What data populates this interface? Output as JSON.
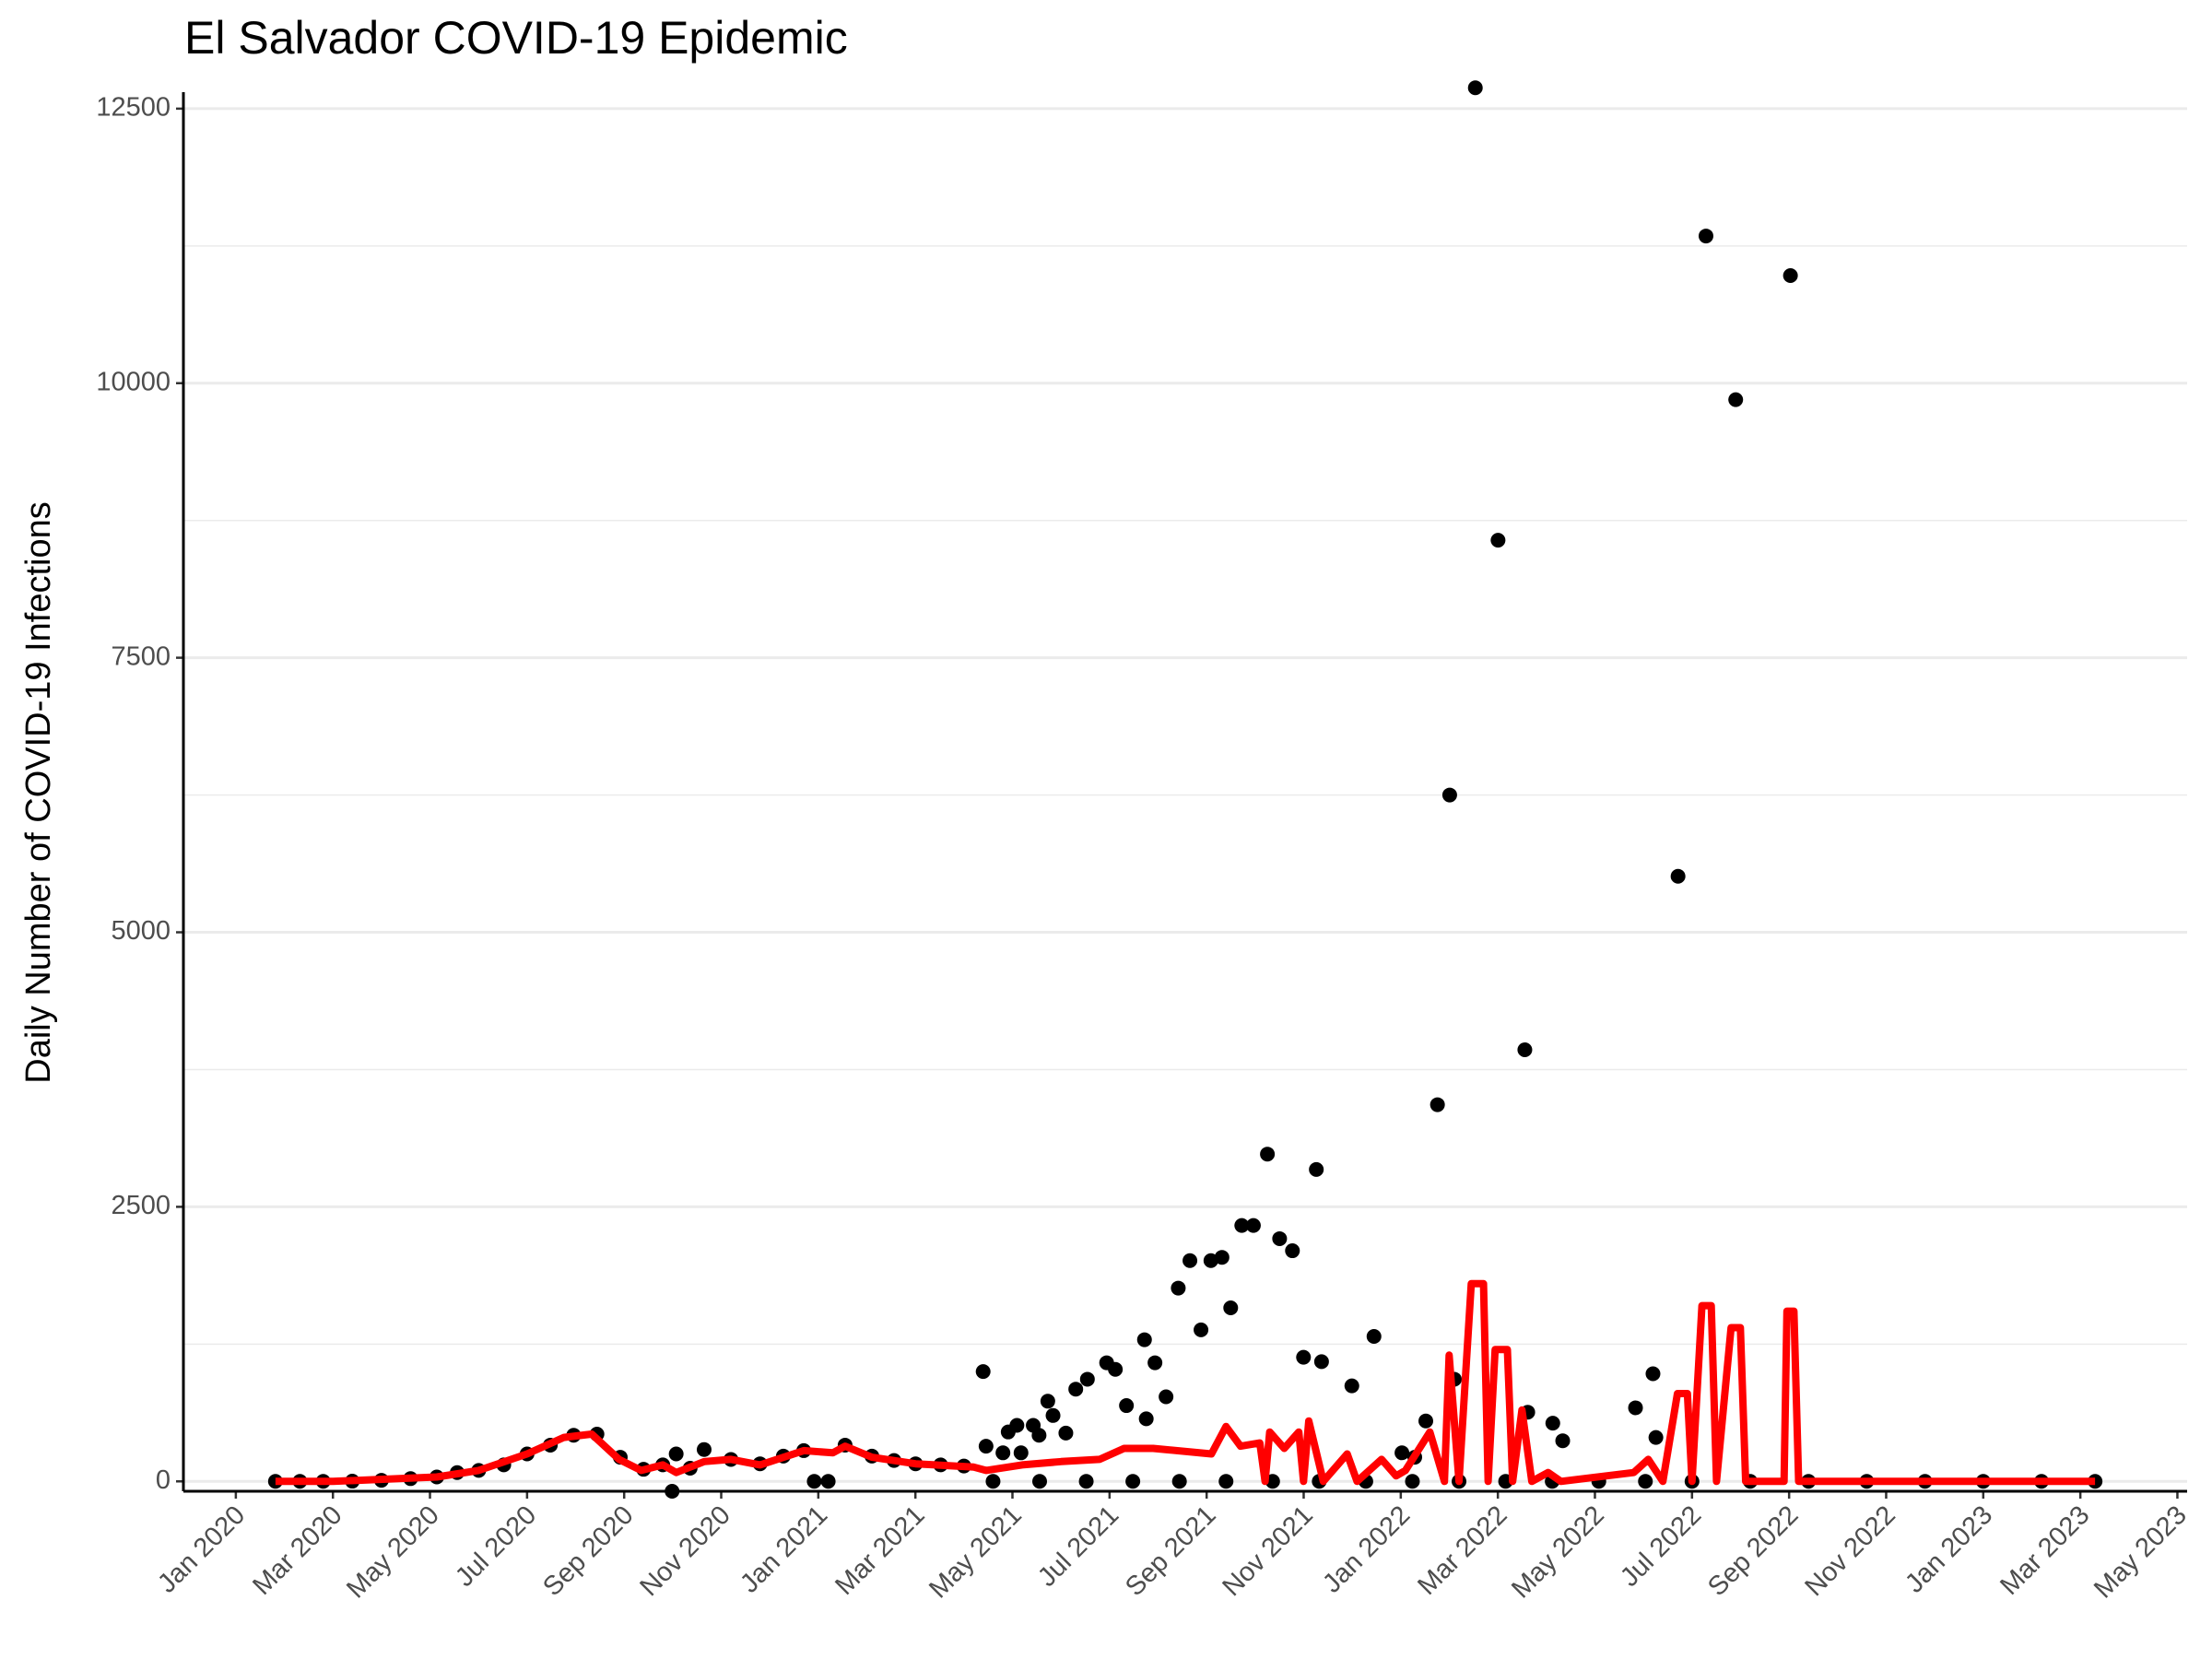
{
  "chart_data": {
    "type": "scatter",
    "title": "El Salvador COVID-19 Epidemic",
    "y_label": "Daily Number of COVID-19 Infections",
    "xlim": [
      2019.91,
      2023.35
    ],
    "ylim": [
      -90,
      12650
    ],
    "yticks": [
      0,
      2500,
      5000,
      7500,
      10000,
      12500
    ],
    "yticks_minor": [
      1250,
      3750,
      6250,
      8750,
      11250
    ],
    "xticks": [
      {
        "value": 2020.0,
        "label": "Jan 2020"
      },
      {
        "value": 2020.1667,
        "label": "Mar 2020"
      },
      {
        "value": 2020.3333,
        "label": "May 2020"
      },
      {
        "value": 2020.5,
        "label": "Jul 2020"
      },
      {
        "value": 2020.6667,
        "label": "Sep 2020"
      },
      {
        "value": 2020.8333,
        "label": "Nov 2020"
      },
      {
        "value": 2021.0,
        "label": "Jan 2021"
      },
      {
        "value": 2021.1667,
        "label": "Mar 2021"
      },
      {
        "value": 2021.3333,
        "label": "May 2021"
      },
      {
        "value": 2021.5,
        "label": "Jul 2021"
      },
      {
        "value": 2021.6667,
        "label": "Sep 2021"
      },
      {
        "value": 2021.8333,
        "label": "Nov 2021"
      },
      {
        "value": 2022.0,
        "label": "Jan 2022"
      },
      {
        "value": 2022.1667,
        "label": "Mar 2022"
      },
      {
        "value": 2022.3333,
        "label": "May 2022"
      },
      {
        "value": 2022.5,
        "label": "Jul 2022"
      },
      {
        "value": 2022.6667,
        "label": "Sep 2022"
      },
      {
        "value": 2022.8333,
        "label": "Nov 2022"
      },
      {
        "value": 2023.0,
        "label": "Jan 2023"
      },
      {
        "value": 2023.1667,
        "label": "Mar 2023"
      },
      {
        "value": 2023.3333,
        "label": "May 2023"
      }
    ],
    "grid": "y",
    "series": [
      {
        "mark": "point",
        "color": "#000000",
        "x": [
          2022.128,
          2022.524,
          2022.669,
          2022.575,
          2022.167,
          2022.084,
          2022.476,
          2022.213,
          2022.063,
          2021.771,
          2021.855,
          2021.727,
          2021.747,
          2021.792,
          2021.814,
          2021.693,
          2021.674,
          2021.638,
          2021.618,
          2021.708,
          2021.954,
          2021.657,
          2021.56,
          2021.833,
          2021.864,
          2021.495,
          2021.578,
          2021.51,
          2021.283,
          2022.433,
          2021.462,
          2022.092,
          2021.916,
          2021.442,
          2021.597,
          2021.394,
          2021.529,
          2022.403,
          2022.218,
          2021.403,
          2021.563,
          2022.043,
          2022.261,
          2021.341,
          2021.369,
          2021.326,
          2021.425,
          2021.379,
          2022.278,
          2022.438,
          2021.288,
          2021.317,
          2021.348,
          2022.002,
          2022.024,
          2020.993,
          2021.017,
          2020.749,
          2020.068,
          2020.11,
          2020.15,
          2020.2,
          2020.25,
          2020.3,
          2020.345,
          2020.38,
          2020.417,
          2020.46,
          2020.5,
          2020.54,
          2020.58,
          2020.62,
          2020.66,
          2020.7,
          2020.733,
          2020.756,
          2020.78,
          2020.804,
          2020.85,
          2020.9,
          2020.94,
          2020.975,
          2021.046,
          2021.092,
          2021.13,
          2021.167,
          2021.21,
          2021.25,
          2021.3,
          2021.38,
          2021.46,
          2021.54,
          2021.62,
          2021.7,
          2021.78,
          2021.86,
          2021.94,
          2022.02,
          2022.1,
          2022.18,
          2022.26,
          2022.34,
          2022.42,
          2022.5,
          2022.6,
          2022.7,
          2022.8,
          2022.9,
          2023.0,
          2023.1,
          2023.192
        ],
        "values": [
          12690,
          11340,
          10980,
          9850,
          8570,
          6250,
          5510,
          3930,
          3430,
          2980,
          2840,
          2330,
          2330,
          2210,
          2100,
          2040,
          2010,
          2010,
          1760,
          1580,
          1320,
          1380,
          1290,
          1130,
          1090,
          1080,
          1080,
          1020,
          1000,
          980,
          930,
          930,
          870,
          840,
          770,
          730,
          690,
          670,
          630,
          600,
          570,
          550,
          530,
          510,
          510,
          450,
          440,
          420,
          370,
          400,
          320,
          260,
          260,
          260,
          220,
          0,
          0,
          -90,
          0,
          0,
          0,
          2,
          10,
          25,
          40,
          80,
          100,
          150,
          250,
          330,
          420,
          430,
          220,
          110,
          150,
          250,
          120,
          290,
          200,
          160,
          230,
          280,
          330,
          230,
          190,
          160,
          150,
          140,
          0,
          0,
          0,
          0,
          0,
          0,
          0,
          0,
          0,
          0,
          0,
          0,
          0,
          0,
          0,
          0,
          0,
          0,
          0,
          0,
          0,
          0,
          0
        ]
      },
      {
        "mark": "line",
        "color": "#ff0000",
        "x": [
          2020.068,
          2020.167,
          2020.345,
          2020.417,
          2020.5,
          2020.563,
          2020.611,
          2020.658,
          2020.696,
          2020.733,
          2020.756,
          2020.804,
          2020.85,
          2020.9,
          2020.975,
          2021.025,
          2021.046,
          2021.092,
          2021.167,
          2021.267,
          2021.288,
          2021.35,
          2021.417,
          2021.483,
          2021.525,
          2021.575,
          2021.675,
          2021.7,
          2021.725,
          2021.758,
          2021.767,
          2021.775,
          2021.8,
          2021.825,
          2021.833,
          2021.842,
          2021.867,
          2021.908,
          2021.925,
          2021.967,
          2021.992,
          2022.008,
          2022.05,
          2022.075,
          2022.083,
          2022.1,
          2022.121,
          2022.142,
          2022.15,
          2022.162,
          2022.183,
          2022.192,
          2022.208,
          2022.225,
          2022.253,
          2022.275,
          2022.4,
          2022.425,
          2022.45,
          2022.475,
          2022.492,
          2022.5,
          2022.517,
          2022.533,
          2022.542,
          2022.567,
          2022.583,
          2022.592,
          2022.658,
          2022.663,
          2022.675,
          2022.683,
          2023.192
        ],
        "values": [
          0,
          0,
          40,
          100,
          250,
          400,
          430,
          200,
          100,
          150,
          80,
          180,
          200,
          150,
          280,
          260,
          320,
          220,
          160,
          130,
          100,
          150,
          180,
          200,
          300,
          300,
          250,
          500,
          320,
          350,
          0,
          450,
          300,
          450,
          0,
          550,
          0,
          250,
          0,
          200,
          50,
          100,
          450,
          0,
          1150,
          0,
          1800,
          1800,
          0,
          1200,
          1200,
          0,
          650,
          0,
          80,
          0,
          80,
          200,
          0,
          800,
          800,
          0,
          1600,
          1600,
          0,
          1400,
          1400,
          0,
          0,
          1550,
          1550,
          0,
          0
        ]
      }
    ]
  }
}
